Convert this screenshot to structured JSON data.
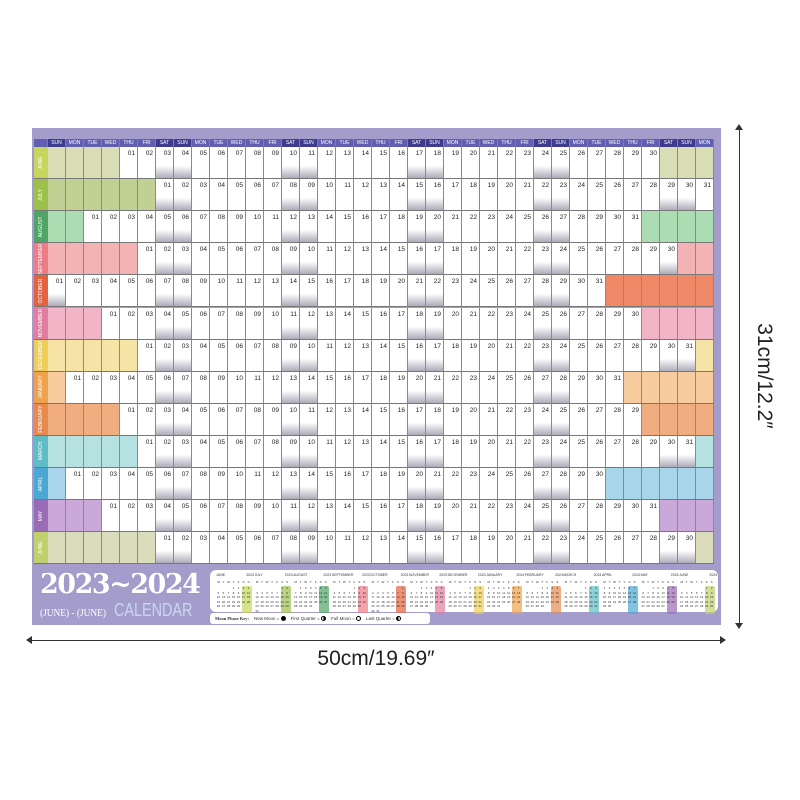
{
  "poster": {
    "title": "2023~2024",
    "subtitle_range": "(JUNE) - (JUNE)",
    "subtitle_word": "CALENDAR",
    "weekdays": [
      "SUN",
      "MON",
      "TUE",
      "WED",
      "THU",
      "FRI",
      "SAT"
    ],
    "months": [
      {
        "label": "JUNE",
        "name": "JUNE",
        "year": "2023",
        "days": 30,
        "first_weekday": 4,
        "fill": "#d9ddb5",
        "tab": "#c6d65c"
      },
      {
        "label": "JULY",
        "name": "JULY",
        "year": "2023",
        "days": 31,
        "first_weekday": 6,
        "fill": "#c0d193",
        "tab": "#9dbf4b"
      },
      {
        "label": "AUGUST",
        "name": "AUGUST",
        "year": "2023",
        "days": 31,
        "first_weekday": 2,
        "fill": "#acdcb2",
        "tab": "#4ea565"
      },
      {
        "label": "SEPTEMBER",
        "name": "SEPTEMBER",
        "year": "2023",
        "days": 30,
        "first_weekday": 5,
        "fill": "#f3b3b5",
        "tab": "#ec7c86"
      },
      {
        "label": "OCTOBER",
        "name": "OCTOBER",
        "year": "2023",
        "days": 31,
        "first_weekday": 0,
        "fill": "#ee8866",
        "tab": "#e5613f"
      },
      {
        "label": "NOVEMBER",
        "name": "NOVEMBER",
        "year": "2023",
        "days": 30,
        "first_weekday": 3,
        "fill": "#f2b4c7",
        "tab": "#e27ca0"
      },
      {
        "label": "DECEMBER",
        "name": "DECEMBER",
        "year": "2023",
        "days": 31,
        "first_weekday": 5,
        "fill": "#f6e4a6",
        "tab": "#ecce58"
      },
      {
        "label": "JANUARY",
        "name": "JANUARY",
        "year": "2024",
        "days": 31,
        "first_weekday": 1,
        "fill": "#f6cb9d",
        "tab": "#efa24e"
      },
      {
        "label": "FEBRUARY",
        "name": "FEBRUARY",
        "year": "2024",
        "days": 29,
        "first_weekday": 4,
        "fill": "#f0ad80",
        "tab": "#e88a50"
      },
      {
        "label": "MARCH",
        "name": "MARCH",
        "year": "2024",
        "days": 31,
        "first_weekday": 5,
        "fill": "#b6e1e1",
        "tab": "#5dbcc4"
      },
      {
        "label": "APRIL",
        "name": "APRIL",
        "year": "2024",
        "days": 30,
        "first_weekday": 1,
        "fill": "#a8d5ea",
        "tab": "#4ba8d3"
      },
      {
        "label": "MAY",
        "name": "MAY",
        "year": "2024",
        "days": 31,
        "first_weekday": 3,
        "fill": "#caa8d9",
        "tab": "#9a6cb5"
      },
      {
        "label": "JUNE",
        "name": "JUNE",
        "year": "2024",
        "days": 30,
        "first_weekday": 6,
        "fill": "#dadcbb",
        "tab": "#c0d06c"
      }
    ],
    "mini_weekday_letters": [
      "M",
      "T",
      "W",
      "T",
      "F",
      "S",
      "S"
    ],
    "moon_key": {
      "title": "Moon Phase Key:",
      "items": [
        "New Moon =",
        "First Quarter =",
        "Full Moon =",
        "Last Quarter ="
      ]
    }
  },
  "dimensions": {
    "width_label": "50cm/19.69″",
    "height_label": "31cm/12.2″"
  },
  "colors": {
    "poster_bg": "#a49dcc",
    "header_weekend": "#3d3c8f",
    "header_weekday": "#6160b0"
  }
}
